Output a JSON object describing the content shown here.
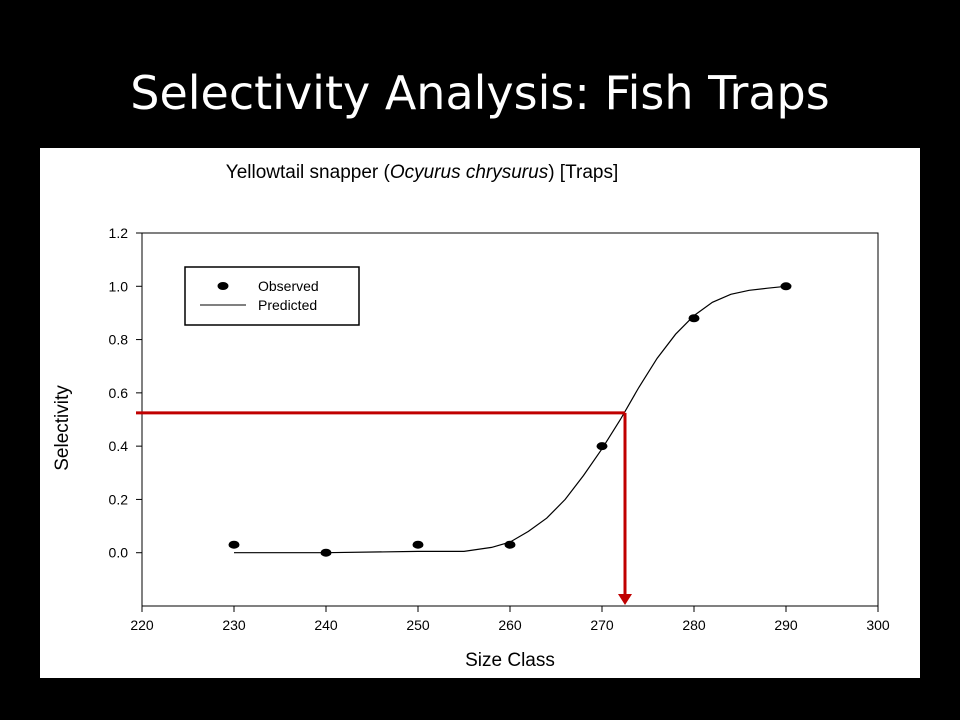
{
  "slide": {
    "title": "Selectivity Analysis: Fish Traps"
  },
  "chart_data": {
    "type": "scatter",
    "title_prefix": "Yellowtail snapper (",
    "title_italic": "Ocyurus chrysurus",
    "title_suffix": ") [Traps]",
    "xlabel": "Size Class",
    "ylabel": "Selectivity",
    "xlim": [
      220,
      300
    ],
    "ylim": [
      -0.2,
      1.2
    ],
    "x_ticks": [
      220,
      230,
      240,
      250,
      260,
      270,
      280,
      290,
      300
    ],
    "y_ticks": [
      "1.2",
      "1.0",
      "0.8",
      "0.6",
      "0.4",
      "0.2",
      "0.0"
    ],
    "y_tick_values": [
      1.2,
      1.0,
      0.8,
      0.6,
      0.4,
      0.2,
      0.0
    ],
    "grid": false,
    "legend_position": "top-left",
    "series": [
      {
        "name": "Observed",
        "style": "points",
        "x": [
          230,
          240,
          250,
          260,
          270,
          280,
          290
        ],
        "y": [
          0.03,
          0.0,
          0.03,
          0.03,
          0.4,
          0.88,
          1.0
        ]
      },
      {
        "name": "Predicted",
        "style": "line",
        "x": [
          230,
          240,
          250,
          255,
          258,
          260,
          262,
          264,
          266,
          268,
          270,
          272,
          274,
          276,
          278,
          280,
          282,
          284,
          286,
          288,
          290
        ],
        "y": [
          0.0,
          0.0,
          0.005,
          0.005,
          0.02,
          0.04,
          0.08,
          0.13,
          0.2,
          0.29,
          0.39,
          0.5,
          0.62,
          0.73,
          0.82,
          0.89,
          0.94,
          0.97,
          0.985,
          0.993,
          1.0
        ]
      }
    ],
    "annotation": {
      "x50": 272.5,
      "y50": 0.525,
      "color": "#c00000"
    }
  }
}
